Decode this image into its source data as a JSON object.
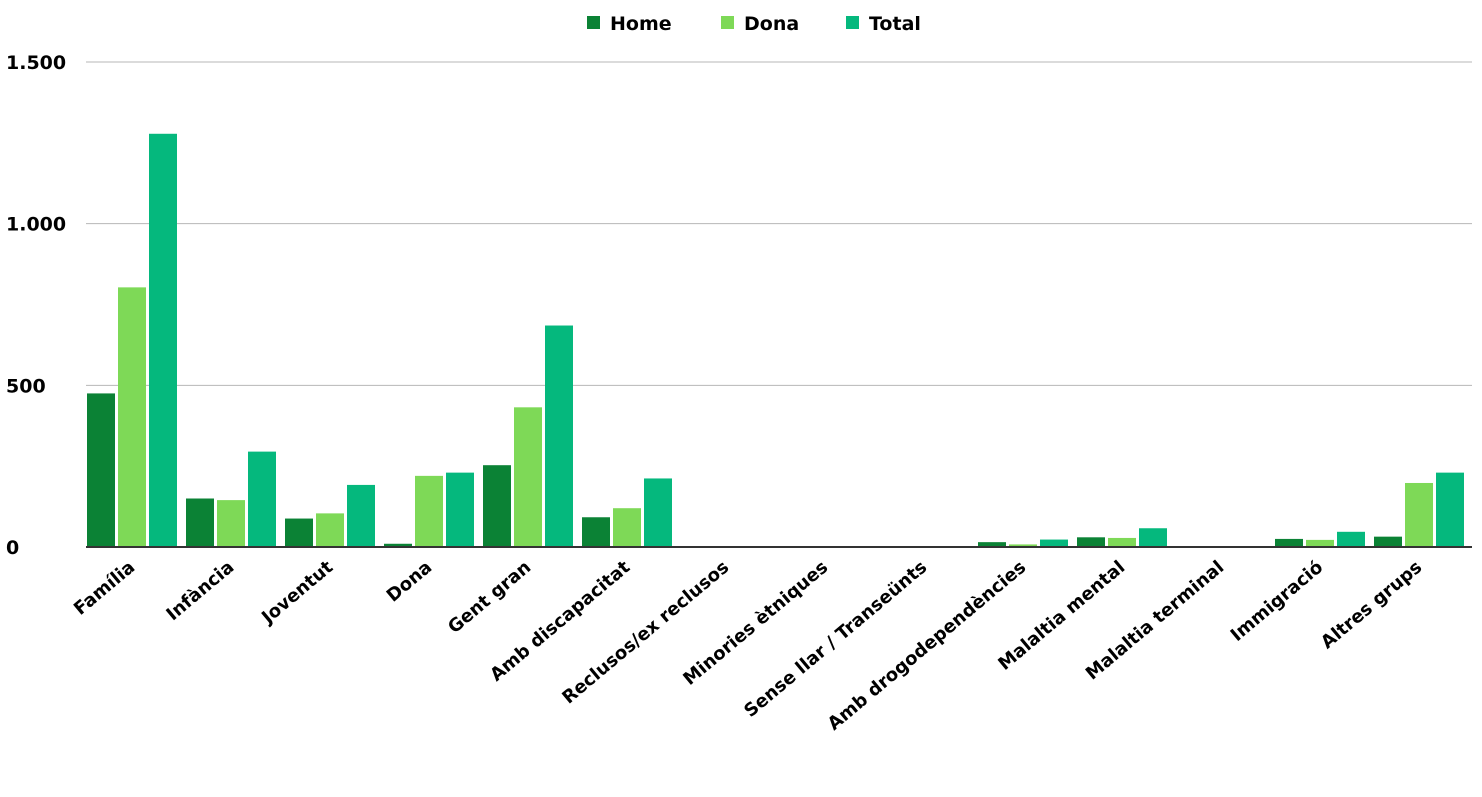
{
  "chart_data": {
    "type": "bar",
    "title": "",
    "xlabel": "",
    "ylabel": "",
    "ylim": [
      0,
      1500
    ],
    "yticks": [
      0,
      500,
      1000,
      1500
    ],
    "ytick_labels": [
      "0",
      "500",
      "1.000",
      "1.500"
    ],
    "grid": true,
    "legend_position": "top-center",
    "categories": [
      "Família",
      "Infància",
      "Joventut",
      "Dona",
      "Gent gran",
      "Amb discapacitat",
      "Reclusos/ex reclusos",
      "Minories ètniques",
      "Sense llar / Transeünts",
      "Amb drogodependències",
      "Malaltia mental",
      "Malaltia terminal",
      "Immigració",
      "Altres grups"
    ],
    "series": [
      {
        "name": "Home",
        "color": "#0b8235",
        "values": [
          475,
          150,
          88,
          10,
          253,
          92,
          1,
          0,
          1,
          15,
          30,
          2,
          25,
          32
        ]
      },
      {
        "name": "Dona",
        "color": "#7ed957",
        "values": [
          803,
          145,
          104,
          220,
          432,
          120,
          0,
          0,
          2,
          8,
          28,
          1,
          22,
          198
        ]
      },
      {
        "name": "Total",
        "color": "#05b87d",
        "values": [
          1278,
          295,
          192,
          230,
          685,
          212,
          1,
          0,
          3,
          23,
          58,
          3,
          47,
          230
        ]
      }
    ]
  }
}
